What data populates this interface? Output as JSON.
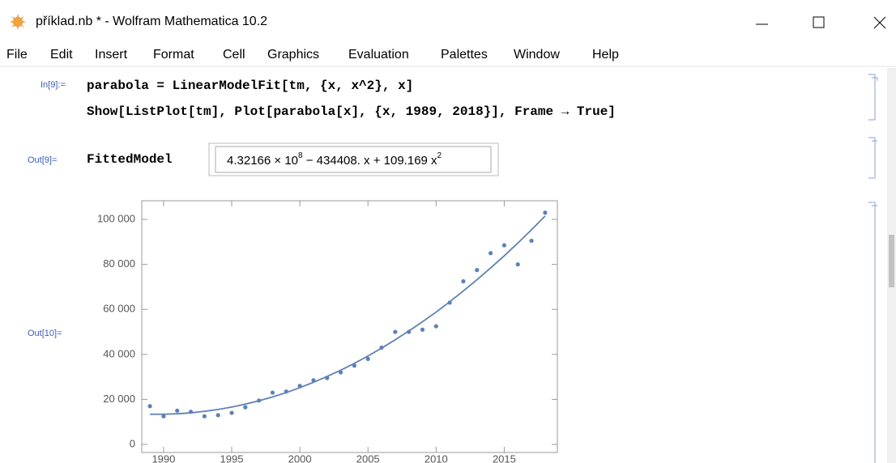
{
  "window": {
    "title": "příklad.nb * - Wolfram Mathematica 10.2"
  },
  "menu": [
    "File",
    "Edit",
    "Insert",
    "Format",
    "Cell",
    "Graphics",
    "Evaluation",
    "Palettes",
    "Window",
    "Help"
  ],
  "cells": {
    "in_label": "In[9]:=",
    "code": [
      "parabola = LinearModelFit[tm, {x, x^2}, x]",
      "Show[ListPlot[tm], Plot[parabola[x], {x, 1989, 2018}], Frame → True]"
    ],
    "out_label": "Out[9]=",
    "head": "FittedModel",
    "formula": {
      "mantissa": "4.32166 × 10",
      "exponent": "8",
      "middle": " − 434408. x + 109.169 x",
      "power": "2"
    },
    "plot_label": "Out[10]="
  },
  "chart_data": {
    "type": "scatter",
    "x": [
      1989,
      1990,
      1991,
      1992,
      1993,
      1994,
      1995,
      1996,
      1997,
      1998,
      1999,
      2000,
      2001,
      2002,
      2003,
      2004,
      2005,
      2006,
      2007,
      2008,
      2009,
      2010,
      2011,
      2012,
      2013,
      2014,
      2015,
      2016,
      2017,
      2018
    ],
    "series": [
      {
        "type": "scatter",
        "color": "#5e81b5",
        "values": [
          17000,
          12500,
          15000,
          14500,
          12500,
          13000,
          14000,
          16500,
          19500,
          23000,
          23500,
          26000,
          28500,
          29500,
          32000,
          35000,
          38000,
          43000,
          50000,
          50000,
          51000,
          52500,
          63000,
          72500,
          77500,
          85000,
          88500,
          80000,
          90500,
          103000
        ]
      },
      {
        "type": "line",
        "color": "#5e81b5",
        "values": [
          13400,
          13400,
          13600,
          14000,
          14700,
          15500,
          16600,
          17900,
          19400,
          21100,
          23000,
          25200,
          27600,
          30200,
          33000,
          36000,
          39300,
          42800,
          46500,
          50400,
          54500,
          58800,
          63400,
          68200,
          73200,
          78400,
          83800,
          89500,
          95400,
          101500
        ]
      }
    ],
    "xlim": [
      1988.4,
      2018.9
    ],
    "ylim": [
      -3600,
      108300
    ],
    "xticks": [
      1990,
      1995,
      2000,
      2005,
      2010,
      2015
    ],
    "yticks": [
      0,
      {
        "value": 20000,
        "label": "20 000"
      },
      {
        "value": 40000,
        "label": "40 000"
      },
      {
        "value": 60000,
        "label": "60 000"
      },
      {
        "value": 80000,
        "label": "80 000"
      },
      {
        "value": 100000,
        "label": "100 000"
      }
    ],
    "frame": true
  }
}
